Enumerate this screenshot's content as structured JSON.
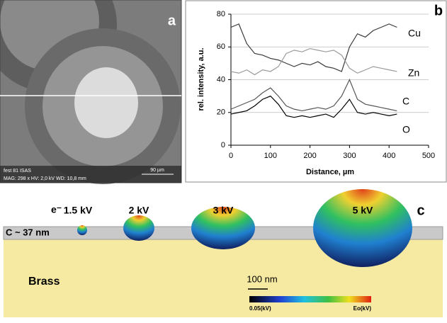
{
  "panel_a": {
    "label": "a",
    "info_line_1": "fest 81   ISAS",
    "info_line_2": "MAG: 298 x   HV: 2,0 kV   WD: 10,8 mm",
    "scale": "90 µm"
  },
  "chart_data": {
    "type": "line",
    "label": "b",
    "x_label": "Distance, µm",
    "y_label": "rel. intensity, a.u.",
    "x": [
      0,
      20,
      40,
      60,
      80,
      100,
      120,
      140,
      160,
      180,
      200,
      220,
      240,
      260,
      280,
      300,
      320,
      340,
      360,
      380,
      400,
      420
    ],
    "series": [
      {
        "name": "Cu",
        "color": "#3a3a3a",
        "values": [
          72,
          74,
          62,
          56,
          55,
          53,
          52,
          50,
          48,
          50,
          49,
          51,
          48,
          47,
          45,
          60,
          68,
          66,
          70,
          72,
          74,
          72
        ]
      },
      {
        "name": "Zn",
        "color": "#9a9a9a",
        "values": [
          45,
          44,
          46,
          43,
          46,
          45,
          48,
          56,
          58,
          57,
          59,
          58,
          57,
          58,
          55,
          47,
          44,
          46,
          48,
          47,
          46,
          45
        ]
      },
      {
        "name": "C",
        "color": "#555555",
        "values": [
          22,
          24,
          26,
          28,
          32,
          35,
          30,
          24,
          22,
          21,
          22,
          23,
          22,
          24,
          30,
          40,
          28,
          25,
          24,
          23,
          22,
          21
        ]
      },
      {
        "name": "O",
        "color": "#000000",
        "values": [
          19,
          20,
          21,
          24,
          28,
          30,
          25,
          18,
          17,
          18,
          17,
          18,
          19,
          17,
          22,
          28,
          20,
          19,
          20,
          19,
          18,
          19
        ]
      }
    ],
    "xlim": [
      0,
      500
    ],
    "xticks": [
      0,
      100,
      200,
      300,
      400,
      500
    ],
    "ylim": [
      0,
      80
    ],
    "yticks": [
      0,
      20,
      40,
      60,
      80
    ],
    "grid": true
  },
  "panel_c": {
    "label": "c",
    "electron": "e⁻",
    "voltages": [
      "1.5 kV",
      "2 kV",
      "3 kV",
      "5 kV"
    ],
    "layer": "C ~ 37 nm",
    "substrate": "Brass",
    "scale": "100 nm",
    "colorbar_min": "0.05(kV)",
    "colorbar_max": "Eo(kV)"
  }
}
